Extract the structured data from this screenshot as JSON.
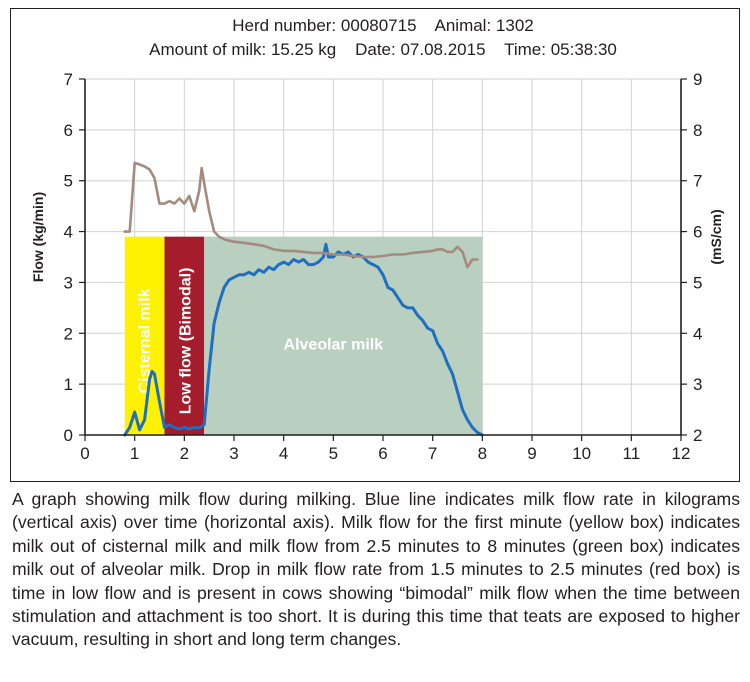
{
  "header": {
    "line1": "Herd number: 00080715    Animal: 1302",
    "line2": "Amount of milk: 15.25 kg    Date: 07.08.2015    Time: 05:38:30"
  },
  "caption": "A graph showing milk flow during milking. Blue line indicates milk flow rate in kilograms (vertical axis) over time (horizontal axis). Milk flow for the first minute (yellow box) indicates milk out of cisternal milk and milk flow from 2.5 minutes to 8 minutes (green box) indicates milk out of alveolar milk. Drop in milk flow rate from 1.5 minutes to 2.5 minutes (red box) is time in low flow and is present in cows showing “bimodal” milk flow when the time between stimulation and attachment is too short. It is during this time that teats are exposed to higher vacuum, resulting in short and long term changes.",
  "colors": {
    "flow_line": "#1f6fc0",
    "conductivity_line": "#a38b80",
    "cisternal_box": "#fff200",
    "low_flow_box": "#a51d2d",
    "alveolar_box": "#b9cfc0",
    "grid": "#d2d2d2"
  },
  "chart_data": {
    "type": "line",
    "xlim": [
      0,
      12
    ],
    "ylim": [
      0,
      7
    ],
    "y2lim": [
      2,
      9
    ],
    "xticks": [
      "0",
      "1",
      "2",
      "3",
      "4",
      "5",
      "6",
      "7",
      "8",
      "9",
      "10",
      "11",
      "12"
    ],
    "yticks": [
      "0",
      "1",
      "2",
      "3",
      "4",
      "5",
      "6",
      "7"
    ],
    "y2ticks": [
      "2",
      "3",
      "4",
      "5",
      "6",
      "7",
      "8",
      "9"
    ],
    "ylabel": "Flow (kg/min)",
    "y2label": "(mS/cm)",
    "grid": true,
    "regions": [
      {
        "label": "Cisternal milk",
        "x0": 0.8,
        "x1": 1.6,
        "y0": 0,
        "y1": 3.9,
        "color": "#fff200"
      },
      {
        "label": "Low flow (Bimodal)",
        "x0": 1.6,
        "x1": 2.4,
        "y0": 0,
        "y1": 3.9,
        "color": "#a51d2d"
      },
      {
        "label": "Alveolar milk",
        "x0": 2.4,
        "x1": 8.0,
        "y0": 0,
        "y1": 3.9,
        "color": "#b9cfc0"
      }
    ],
    "series": [
      {
        "axis": "left",
        "color": "#1f6fc0",
        "x": [
          0.8,
          0.9,
          1.0,
          1.1,
          1.2,
          1.3,
          1.35,
          1.4,
          1.5,
          1.6,
          1.7,
          1.8,
          1.9,
          2.0,
          2.1,
          2.2,
          2.3,
          2.4,
          2.5,
          2.6,
          2.7,
          2.8,
          2.9,
          3.0,
          3.1,
          3.2,
          3.3,
          3.4,
          3.5,
          3.6,
          3.7,
          3.8,
          3.9,
          4.0,
          4.1,
          4.2,
          4.3,
          4.4,
          4.5,
          4.6,
          4.7,
          4.8,
          4.85,
          4.9,
          5.0,
          5.1,
          5.2,
          5.3,
          5.4,
          5.5,
          5.6,
          5.7,
          5.8,
          5.9,
          6.0,
          6.1,
          6.2,
          6.3,
          6.4,
          6.5,
          6.6,
          6.7,
          6.8,
          6.9,
          7.0,
          7.1,
          7.2,
          7.3,
          7.4,
          7.5,
          7.6,
          7.7,
          7.8,
          7.9,
          8.0
        ],
        "values": [
          0.0,
          0.15,
          0.45,
          0.1,
          0.3,
          1.1,
          1.25,
          1.2,
          0.65,
          0.15,
          0.2,
          0.15,
          0.12,
          0.15,
          0.12,
          0.15,
          0.14,
          0.2,
          1.3,
          2.2,
          2.6,
          2.9,
          3.05,
          3.1,
          3.15,
          3.15,
          3.2,
          3.15,
          3.25,
          3.2,
          3.3,
          3.25,
          3.35,
          3.4,
          3.35,
          3.45,
          3.4,
          3.45,
          3.35,
          3.35,
          3.4,
          3.5,
          3.75,
          3.5,
          3.5,
          3.6,
          3.55,
          3.6,
          3.5,
          3.55,
          3.5,
          3.4,
          3.35,
          3.3,
          3.15,
          2.9,
          2.85,
          2.7,
          2.55,
          2.5,
          2.5,
          2.35,
          2.25,
          2.1,
          2.05,
          1.8,
          1.65,
          1.4,
          1.2,
          0.85,
          0.5,
          0.3,
          0.15,
          0.05,
          0.0
        ]
      },
      {
        "axis": "right",
        "color": "#a38b80",
        "x": [
          0.8,
          0.9,
          1.0,
          1.1,
          1.2,
          1.3,
          1.4,
          1.5,
          1.6,
          1.7,
          1.8,
          1.9,
          2.0,
          2.1,
          2.2,
          2.3,
          2.35,
          2.4,
          2.5,
          2.6,
          2.7,
          2.8,
          2.9,
          3.0,
          3.2,
          3.4,
          3.6,
          3.8,
          4.0,
          4.2,
          4.4,
          4.6,
          4.8,
          5.0,
          5.2,
          5.4,
          5.6,
          5.8,
          6.0,
          6.2,
          6.4,
          6.6,
          6.8,
          7.0,
          7.1,
          7.2,
          7.3,
          7.4,
          7.5,
          7.6,
          7.7,
          7.8,
          7.9
        ],
        "values": [
          6.0,
          6.0,
          7.35,
          7.32,
          7.28,
          7.22,
          7.05,
          6.55,
          6.55,
          6.6,
          6.55,
          6.65,
          6.55,
          6.7,
          6.4,
          6.8,
          7.25,
          6.95,
          6.4,
          6.0,
          5.9,
          5.85,
          5.82,
          5.8,
          5.78,
          5.75,
          5.72,
          5.65,
          5.62,
          5.62,
          5.6,
          5.58,
          5.58,
          5.55,
          5.55,
          5.52,
          5.5,
          5.5,
          5.52,
          5.55,
          5.55,
          5.58,
          5.6,
          5.62,
          5.65,
          5.65,
          5.6,
          5.6,
          5.7,
          5.6,
          5.3,
          5.45,
          5.45
        ]
      }
    ]
  }
}
